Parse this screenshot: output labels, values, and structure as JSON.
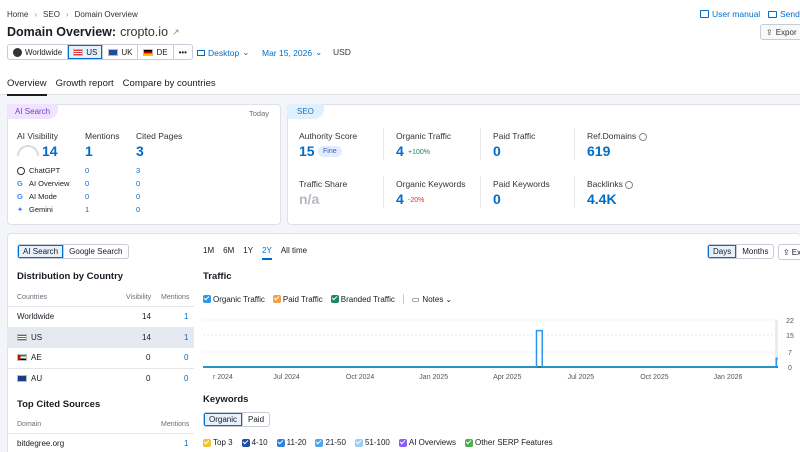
{
  "breadcrumb": {
    "home": "Home",
    "seo": "SEO",
    "current": "Domain Overview"
  },
  "header": {
    "title": "Domain Overview:",
    "domain": "cropto.io",
    "user_manual": "User manual",
    "send": "Send",
    "export": "Expor"
  },
  "databases": [
    {
      "label": "Worldwide",
      "flag": "globe"
    },
    {
      "label": "US",
      "flag": "us",
      "selected": true
    },
    {
      "label": "UK",
      "flag": "uk"
    },
    {
      "label": "DE",
      "flag": "de"
    },
    {
      "label": "•••",
      "flag": "more"
    }
  ],
  "filters": {
    "device": "Desktop",
    "date": "Mar 15, 2026",
    "currency": "USD"
  },
  "tabs": [
    "Overview",
    "Growth report",
    "Compare by countries"
  ],
  "ai_search": {
    "pill": "AI Search",
    "today": "Today",
    "visibility_label": "AI Visibility",
    "visibility_value": "14",
    "mentions_label": "Mentions",
    "mentions_value": "1",
    "cited_label": "Cited Pages",
    "cited_value": "3",
    "rows": [
      {
        "name": "ChatGPT",
        "mentions": "0",
        "cited": "3",
        "icon": "chatgpt-icon"
      },
      {
        "name": "AI Overview",
        "mentions": "0",
        "cited": "0",
        "icon": "google-icon"
      },
      {
        "name": "AI Mode",
        "mentions": "0",
        "cited": "0",
        "icon": "google-icon"
      },
      {
        "name": "Gemini",
        "mentions": "1",
        "cited": "0",
        "icon": "gemini-icon"
      }
    ]
  },
  "seo": {
    "pill": "SEO",
    "authority_label": "Authority Score",
    "authority_value": "15",
    "authority_badge": "Fine",
    "organic_traffic_label": "Organic Traffic",
    "organic_traffic_value": "4",
    "organic_traffic_change": "+100%",
    "paid_traffic_label": "Paid Traffic",
    "paid_traffic_value": "0",
    "ref_domains_label": "Ref.Domains",
    "ref_domains_value": "619",
    "traffic_share_label": "Traffic Share",
    "traffic_share_value": "n/a",
    "organic_keywords_label": "Organic Keywords",
    "organic_keywords_value": "4",
    "organic_keywords_change": "-20%",
    "paid_keywords_label": "Paid Keywords",
    "paid_keywords_value": "0",
    "backlinks_label": "Backlinks",
    "backlinks_value": "4.4K"
  },
  "left_panel": {
    "toggle": [
      "AI Search",
      "Google Search"
    ],
    "dist_title": "Distribution by Country",
    "col_countries": "Countries",
    "col_visibility": "Visibility",
    "col_mentions": "Mentions",
    "countries": [
      {
        "name": "Worldwide",
        "visibility": "14",
        "mentions": "1",
        "flag": "none"
      },
      {
        "name": "US",
        "visibility": "14",
        "mentions": "1",
        "flag": "us"
      },
      {
        "name": "AE",
        "visibility": "0",
        "mentions": "0",
        "flag": "ae"
      },
      {
        "name": "AU",
        "visibility": "0",
        "mentions": "0",
        "flag": "au"
      }
    ],
    "sources_title": "Top Cited Sources",
    "col_domain": "Domain",
    "col_src_mentions": "Mentions",
    "sources": [
      {
        "domain": "bitdegree.org",
        "mentions": "1"
      }
    ]
  },
  "traffic": {
    "ranges": [
      "1M",
      "6M",
      "1Y",
      "2Y",
      "All time"
    ],
    "selected_range": "2Y",
    "granularity": [
      "Days",
      "Months"
    ],
    "export_short": "Ex",
    "title": "Traffic",
    "legend": [
      {
        "label": "Organic Traffic",
        "color": "#2f96e8"
      },
      {
        "label": "Paid Traffic",
        "color": "#f59e42"
      },
      {
        "label": "Branded Traffic",
        "color": "#178a5f"
      }
    ],
    "notes": "Notes"
  },
  "chart_data": {
    "type": "line",
    "x_ticks": [
      "r 2024",
      "Jul 2024",
      "Oct 2024",
      "Jan 2025",
      "Apr 2025",
      "Jul 2025",
      "Oct 2025",
      "Jan 2026"
    ],
    "y_ticks": [
      "22",
      "15",
      "7",
      "0"
    ],
    "ylim": [
      0,
      22
    ],
    "series": [
      {
        "name": "Organic Traffic",
        "color": "#2f96e8",
        "points": [
          [
            0,
            0
          ],
          [
            0.58,
            0
          ],
          [
            0.58,
            17
          ],
          [
            0.59,
            17
          ],
          [
            0.59,
            0
          ],
          [
            0.997,
            0
          ],
          [
            0.997,
            4
          ],
          [
            1,
            4
          ]
        ]
      },
      {
        "name": "Branded Traffic",
        "color": "#178a5f",
        "points": [
          [
            0,
            0
          ],
          [
            1,
            0
          ]
        ]
      }
    ]
  },
  "keywords": {
    "title": "Keywords",
    "toggle": [
      "Organic",
      "Paid"
    ],
    "legend": [
      {
        "label": "Top 3",
        "color": "#f5c12e"
      },
      {
        "label": "4-10",
        "color": "#1f4ea8"
      },
      {
        "label": "11-20",
        "color": "#2f7fe0"
      },
      {
        "label": "21-50",
        "color": "#4fa6f0"
      },
      {
        "label": "51-100",
        "color": "#9ccdf7"
      },
      {
        "label": "AI Overviews",
        "color": "#8b5cf6"
      },
      {
        "label": "Other SERP Features",
        "color": "#4caf50"
      }
    ]
  }
}
